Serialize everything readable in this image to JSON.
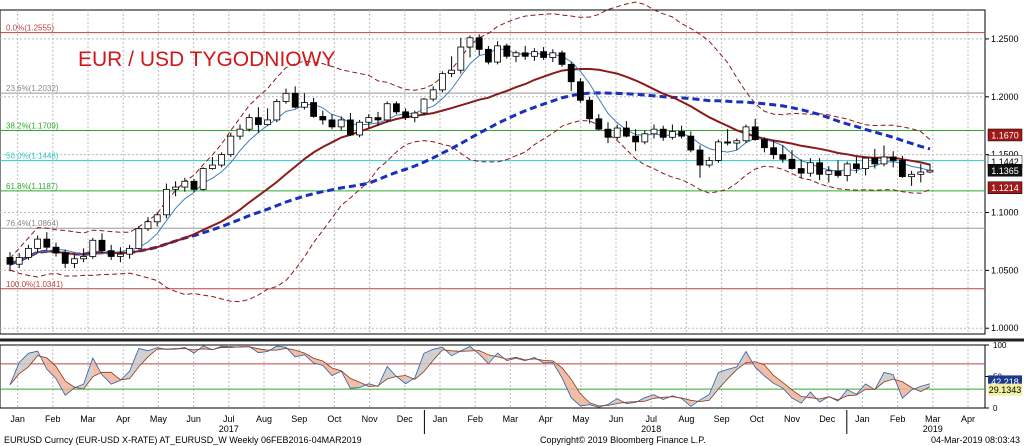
{
  "chart_data": {
    "type": "candlestick",
    "title": "EUR / USD TYGODNIOWY",
    "footer": {
      "left": "EURUSD Curncy (EUR-USD X-RATE) AT_EURUSD_W  Weekly 06FEB2016-04MAR2019",
      "center": "Copyright© 2019 Bloomberg Finance L.P.",
      "right": "04-Mar-2019 08:03:43"
    },
    "price_axis": {
      "range": [
        0.995,
        1.275
      ],
      "ticks": [
        "1.2500",
        "1.2000",
        "1.1500",
        "1.1000",
        "1.0500",
        "1.0000"
      ],
      "tick_values": [
        1.25,
        1.2,
        1.15,
        1.1,
        1.05,
        1.0
      ]
    },
    "value_tags": [
      {
        "label": "1.1670",
        "value": 1.167,
        "bg": "#a01818",
        "fg": "#ffffff"
      },
      {
        "label": "1.1442",
        "value": 1.1442,
        "bg": "#ffffff",
        "fg": "#000000"
      },
      {
        "label": "1.1365",
        "value": 1.1365,
        "bg": "#111111",
        "fg": "#ffffff"
      },
      {
        "label": "1.1214",
        "value": 1.1214,
        "bg": "#a01818",
        "fg": "#ffffff"
      }
    ],
    "fib_levels": [
      {
        "label": "0.0%(1.2555)",
        "value": 1.2555,
        "color": "#c04040"
      },
      {
        "label": "23.6%(1.2032)",
        "value": 1.2032,
        "color": "#999999"
      },
      {
        "label": "38.2%(1.1709)",
        "value": 1.1709,
        "color": "#2eaa2e"
      },
      {
        "label": "50.0%(1.1448)",
        "value": 1.1448,
        "color": "#2ec8c8"
      },
      {
        "label": "61.8%(1.1187)",
        "value": 1.1187,
        "color": "#2eaa2e"
      },
      {
        "label": "76.4%(1.0864)",
        "value": 1.0864,
        "color": "#999999"
      },
      {
        "label": "100.0%(1.0341)",
        "value": 1.0341,
        "color": "#c04040"
      }
    ],
    "time_axis": {
      "months": [
        "Jan",
        "Feb",
        "Mar",
        "Apr",
        "May",
        "Jun",
        "Jul",
        "Aug",
        "Sep",
        "Oct",
        "Nov",
        "Dec",
        "Jan",
        "Feb",
        "Mar",
        "Apr",
        "May",
        "Jun",
        "Jul",
        "Aug",
        "Sep",
        "Oct",
        "Nov",
        "Dec",
        "Jan",
        "Feb",
        "Mar",
        "Apr"
      ],
      "years": [
        {
          "label": "2017",
          "month_index": 6
        },
        {
          "label": "2018",
          "month_index": 18
        },
        {
          "label": "2019",
          "month_index": 26
        }
      ],
      "year_separators": [
        12,
        24
      ]
    },
    "candles": [
      [
        1.0612,
        1.0658,
        1.0492,
        1.0553
      ],
      [
        1.0553,
        1.065,
        1.052,
        1.0612
      ],
      [
        1.0612,
        1.072,
        1.059,
        1.069
      ],
      [
        1.069,
        1.08,
        1.065,
        1.077
      ],
      [
        1.077,
        1.083,
        1.068,
        1.07
      ],
      [
        1.07,
        1.074,
        1.062,
        1.065
      ],
      [
        1.065,
        1.068,
        1.052,
        1.056
      ],
      [
        1.056,
        1.063,
        1.052,
        1.06
      ],
      [
        1.06,
        1.069,
        1.057,
        1.062
      ],
      [
        1.062,
        1.078,
        1.06,
        1.076
      ],
      [
        1.076,
        1.082,
        1.065,
        1.067
      ],
      [
        1.067,
        1.072,
        1.059,
        1.062
      ],
      [
        1.062,
        1.07,
        1.057,
        1.064
      ],
      [
        1.064,
        1.072,
        1.06,
        1.069
      ],
      [
        1.069,
        1.088,
        1.068,
        1.086
      ],
      [
        1.086,
        1.096,
        1.084,
        1.092
      ],
      [
        1.092,
        1.1,
        1.088,
        1.098
      ],
      [
        1.098,
        1.125,
        1.095,
        1.12
      ],
      [
        1.12,
        1.127,
        1.114,
        1.122
      ],
      [
        1.122,
        1.13,
        1.118,
        1.127
      ],
      [
        1.127,
        1.129,
        1.118,
        1.12
      ],
      [
        1.12,
        1.139,
        1.119,
        1.138
      ],
      [
        1.138,
        1.148,
        1.137,
        1.141
      ],
      [
        1.141,
        1.152,
        1.139,
        1.15
      ],
      [
        1.15,
        1.169,
        1.148,
        1.166
      ],
      [
        1.166,
        1.176,
        1.163,
        1.172
      ],
      [
        1.172,
        1.185,
        1.17,
        1.182
      ],
      [
        1.182,
        1.191,
        1.169,
        1.176
      ],
      [
        1.176,
        1.19,
        1.175,
        1.18
      ],
      [
        1.18,
        1.198,
        1.178,
        1.196
      ],
      [
        1.196,
        1.207,
        1.194,
        1.203
      ],
      [
        1.203,
        1.209,
        1.19,
        1.191
      ],
      [
        1.191,
        1.203,
        1.189,
        1.195
      ],
      [
        1.195,
        1.199,
        1.182,
        1.183
      ],
      [
        1.183,
        1.188,
        1.176,
        1.18
      ],
      [
        1.18,
        1.185,
        1.172,
        1.174
      ],
      [
        1.174,
        1.183,
        1.171,
        1.18
      ],
      [
        1.18,
        1.186,
        1.166,
        1.167
      ],
      [
        1.167,
        1.18,
        1.165,
        1.178
      ],
      [
        1.178,
        1.185,
        1.173,
        1.182
      ],
      [
        1.182,
        1.187,
        1.175,
        1.18
      ],
      [
        1.18,
        1.196,
        1.178,
        1.194
      ],
      [
        1.194,
        1.196,
        1.185,
        1.187
      ],
      [
        1.187,
        1.19,
        1.18,
        1.182
      ],
      [
        1.182,
        1.188,
        1.178,
        1.186
      ],
      [
        1.186,
        1.199,
        1.184,
        1.198
      ],
      [
        1.198,
        1.209,
        1.196,
        1.206
      ],
      [
        1.206,
        1.222,
        1.204,
        1.22
      ],
      [
        1.22,
        1.235,
        1.217,
        1.223
      ],
      [
        1.223,
        1.251,
        1.22,
        1.243
      ],
      [
        1.243,
        1.253,
        1.234,
        1.251
      ],
      [
        1.251,
        1.254,
        1.236,
        1.241
      ],
      [
        1.241,
        1.244,
        1.228,
        1.23
      ],
      [
        1.23,
        1.248,
        1.228,
        1.244
      ],
      [
        1.244,
        1.246,
        1.233,
        1.235
      ],
      [
        1.235,
        1.24,
        1.23,
        1.238
      ],
      [
        1.238,
        1.244,
        1.232,
        1.235
      ],
      [
        1.235,
        1.242,
        1.231,
        1.239
      ],
      [
        1.239,
        1.243,
        1.232,
        1.234
      ],
      [
        1.234,
        1.241,
        1.23,
        1.238
      ],
      [
        1.238,
        1.24,
        1.226,
        1.228
      ],
      [
        1.228,
        1.23,
        1.205,
        1.213
      ],
      [
        1.213,
        1.216,
        1.195,
        1.197
      ],
      [
        1.197,
        1.2,
        1.177,
        1.181
      ],
      [
        1.181,
        1.185,
        1.171,
        1.172
      ],
      [
        1.172,
        1.178,
        1.16,
        1.165
      ],
      [
        1.165,
        1.176,
        1.163,
        1.173
      ],
      [
        1.173,
        1.179,
        1.165,
        1.166
      ],
      [
        1.166,
        1.172,
        1.153,
        1.161
      ],
      [
        1.161,
        1.171,
        1.159,
        1.168
      ],
      [
        1.168,
        1.176,
        1.164,
        1.172
      ],
      [
        1.172,
        1.175,
        1.162,
        1.165
      ],
      [
        1.165,
        1.176,
        1.163,
        1.17
      ],
      [
        1.17,
        1.175,
        1.164,
        1.166
      ],
      [
        1.166,
        1.17,
        1.152,
        1.154
      ],
      [
        1.154,
        1.158,
        1.13,
        1.141
      ],
      [
        1.141,
        1.148,
        1.139,
        1.145
      ],
      [
        1.145,
        1.163,
        1.143,
        1.161
      ],
      [
        1.161,
        1.172,
        1.158,
        1.16
      ],
      [
        1.16,
        1.164,
        1.154,
        1.162
      ],
      [
        1.162,
        1.176,
        1.16,
        1.174
      ],
      [
        1.174,
        1.181,
        1.162,
        1.163
      ],
      [
        1.163,
        1.165,
        1.152,
        1.156
      ],
      [
        1.156,
        1.162,
        1.146,
        1.15
      ],
      [
        1.15,
        1.158,
        1.143,
        1.146
      ],
      [
        1.146,
        1.154,
        1.137,
        1.138
      ],
      [
        1.138,
        1.146,
        1.13,
        1.134
      ],
      [
        1.134,
        1.147,
        1.131,
        1.143
      ],
      [
        1.143,
        1.147,
        1.128,
        1.133
      ],
      [
        1.133,
        1.14,
        1.126,
        1.136
      ],
      [
        1.136,
        1.145,
        1.13,
        1.132
      ],
      [
        1.132,
        1.144,
        1.127,
        1.142
      ],
      [
        1.142,
        1.148,
        1.134,
        1.138
      ],
      [
        1.138,
        1.148,
        1.132,
        1.147
      ],
      [
        1.147,
        1.155,
        1.138,
        1.142
      ],
      [
        1.142,
        1.158,
        1.14,
        1.148
      ],
      [
        1.148,
        1.153,
        1.139,
        1.145
      ],
      [
        1.145,
        1.149,
        1.13,
        1.131
      ],
      [
        1.131,
        1.136,
        1.123,
        1.133
      ],
      [
        1.133,
        1.142,
        1.126,
        1.135
      ],
      [
        1.135,
        1.142,
        1.134,
        1.1365
      ]
    ],
    "series": [
      {
        "name": "",
        "color": "#3d7fbf",
        "style": "solid",
        "values": []
      },
      {
        "name": "",
        "color": "#8b1a1a",
        "style": "solid",
        "values": []
      },
      {
        "name": "",
        "color": "#1a2fbf",
        "style": "dashed",
        "values": []
      }
    ],
    "oscillator": {
      "range": [
        0,
        100
      ],
      "ticks": [
        "100",
        "50",
        "0"
      ],
      "tick_values": [
        100,
        50,
        0
      ],
      "levels": [
        {
          "value": 70,
          "color": "#c04040"
        },
        {
          "value": 30,
          "color": "#2eaa2e"
        }
      ],
      "tags": [
        {
          "label": "42.218",
          "value": 42.218,
          "bg": "#1a3a8c",
          "fg": "#ffffff"
        },
        {
          "label": "29.1343",
          "value": 29.1343,
          "bg": "#f0f0a0",
          "fg": "#000000"
        }
      ]
    }
  }
}
